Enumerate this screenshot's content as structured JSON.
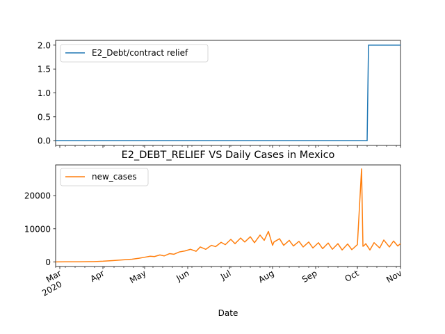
{
  "figure": {
    "title": "E2_DEBT_RELIEF VS Daily Cases in Mexico",
    "xlabel": "Date"
  },
  "chart_data": [
    {
      "type": "line",
      "panel": "top",
      "xlabel": "",
      "ylabel": "",
      "x_range": [
        "2020-02-27",
        "2020-11-01"
      ],
      "ylim": [
        -0.1,
        2.1
      ],
      "yticks": [
        0.0,
        0.5,
        1.0,
        1.5,
        2.0
      ],
      "ytick_labels": [
        "0.0",
        "0.5",
        "1.0",
        "1.5",
        "2.0"
      ],
      "grid": false,
      "legend_position": "upper-left",
      "series": [
        {
          "name": "E2_Debt/contract relief",
          "color": "#1f77b4",
          "x": [
            "2020-02-27",
            "2020-10-08",
            "2020-10-09",
            "2020-11-01"
          ],
          "values": [
            0,
            0,
            2,
            2
          ]
        }
      ]
    },
    {
      "type": "line",
      "panel": "bottom",
      "xlabel": "Date",
      "ylabel": "",
      "x_range": [
        "2020-02-27",
        "2020-11-01"
      ],
      "ylim": [
        -1400,
        29300
      ],
      "yticks": [
        0,
        10000,
        20000
      ],
      "ytick_labels": [
        "0",
        "10000",
        "20000"
      ],
      "xticks": [
        "2020-03-01",
        "2020-04-01",
        "2020-05-01",
        "2020-06-01",
        "2020-07-01",
        "2020-08-01",
        "2020-09-01",
        "2020-10-01",
        "2020-11-01"
      ],
      "xtick_labels": [
        "Mar\n2020",
        "Apr",
        "May",
        "Jun",
        "Jul",
        "Aug",
        "Sep",
        "Oct",
        "Nov"
      ],
      "grid": false,
      "legend_position": "upper-left",
      "series": [
        {
          "name": "new_cases",
          "color": "#ff7f0e",
          "x": [
            "2020-02-27",
            "2020-03-05",
            "2020-03-15",
            "2020-03-25",
            "2020-04-01",
            "2020-04-08",
            "2020-04-15",
            "2020-04-22",
            "2020-04-27",
            "2020-05-01",
            "2020-05-05",
            "2020-05-08",
            "2020-05-12",
            "2020-05-15",
            "2020-05-19",
            "2020-05-22",
            "2020-05-26",
            "2020-05-30",
            "2020-06-03",
            "2020-06-07",
            "2020-06-10",
            "2020-06-14",
            "2020-06-18",
            "2020-06-21",
            "2020-06-25",
            "2020-06-28",
            "2020-07-02",
            "2020-07-05",
            "2020-07-09",
            "2020-07-12",
            "2020-07-16",
            "2020-07-19",
            "2020-07-23",
            "2020-07-26",
            "2020-07-29",
            "2020-08-01",
            "2020-08-02",
            "2020-08-06",
            "2020-08-09",
            "2020-08-13",
            "2020-08-16",
            "2020-08-20",
            "2020-08-23",
            "2020-08-27",
            "2020-08-30",
            "2020-09-03",
            "2020-09-06",
            "2020-09-10",
            "2020-09-13",
            "2020-09-17",
            "2020-09-20",
            "2020-09-24",
            "2020-09-27",
            "2020-10-01",
            "2020-10-04",
            "2020-10-05",
            "2020-10-06",
            "2020-10-07",
            "2020-10-10",
            "2020-10-13",
            "2020-10-17",
            "2020-10-20",
            "2020-10-24",
            "2020-10-27",
            "2020-10-30",
            "2020-11-01"
          ],
          "values": [
            0,
            10,
            30,
            80,
            200,
            400,
            600,
            800,
            1100,
            1400,
            1700,
            1600,
            2100,
            1800,
            2500,
            2300,
            3000,
            3300,
            3800,
            3200,
            4500,
            3800,
            5000,
            4600,
            5900,
            5200,
            6800,
            5500,
            7200,
            6000,
            7600,
            5800,
            8100,
            6500,
            9200,
            5000,
            6000,
            7000,
            5000,
            6500,
            4800,
            6200,
            4500,
            6000,
            4200,
            5800,
            4000,
            5700,
            3800,
            5500,
            3600,
            5400,
            3700,
            5200,
            28100,
            4700,
            5000,
            5500,
            3600,
            5800,
            4200,
            6600,
            4500,
            6300,
            4800,
            5500
          ]
        }
      ]
    }
  ]
}
